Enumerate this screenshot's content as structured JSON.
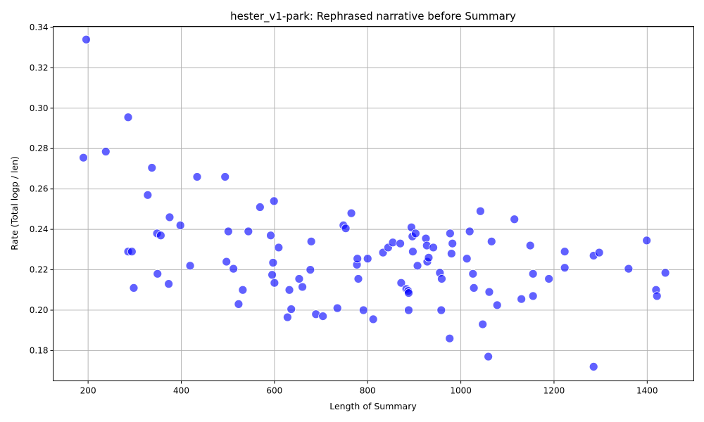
{
  "chart_data": {
    "type": "scatter",
    "title": "hester_v1-park: Rephrased narrative before Summary",
    "xlabel": "Length of Summary",
    "ylabel": "Rate (Total logp / len)",
    "xlim": [
      125,
      1500
    ],
    "ylim": [
      0.165,
      0.3405
    ],
    "xticks": [
      200,
      400,
      600,
      800,
      1000,
      1200,
      1400
    ],
    "yticks": [
      0.18,
      0.2,
      0.22,
      0.24,
      0.26,
      0.28,
      0.3,
      0.32,
      0.34
    ],
    "grid": true,
    "marker_color": "#0000ff",
    "points": [
      {
        "x": 196,
        "y": 0.334
      },
      {
        "x": 190,
        "y": 0.2755
      },
      {
        "x": 238,
        "y": 0.2785
      },
      {
        "x": 286,
        "y": 0.2955
      },
      {
        "x": 286,
        "y": 0.229
      },
      {
        "x": 294,
        "y": 0.229
      },
      {
        "x": 298,
        "y": 0.211
      },
      {
        "x": 328,
        "y": 0.257
      },
      {
        "x": 337,
        "y": 0.2705
      },
      {
        "x": 348,
        "y": 0.238
      },
      {
        "x": 349,
        "y": 0.218
      },
      {
        "x": 356,
        "y": 0.237
      },
      {
        "x": 373,
        "y": 0.213
      },
      {
        "x": 375,
        "y": 0.246
      },
      {
        "x": 398,
        "y": 0.242
      },
      {
        "x": 419,
        "y": 0.222
      },
      {
        "x": 434,
        "y": 0.266
      },
      {
        "x": 494,
        "y": 0.266
      },
      {
        "x": 497,
        "y": 0.224
      },
      {
        "x": 501,
        "y": 0.239
      },
      {
        "x": 512,
        "y": 0.2205
      },
      {
        "x": 523,
        "y": 0.203
      },
      {
        "x": 532,
        "y": 0.21
      },
      {
        "x": 544,
        "y": 0.239
      },
      {
        "x": 569,
        "y": 0.251
      },
      {
        "x": 592,
        "y": 0.237
      },
      {
        "x": 595,
        "y": 0.2175
      },
      {
        "x": 597,
        "y": 0.2235
      },
      {
        "x": 599,
        "y": 0.254
      },
      {
        "x": 600,
        "y": 0.2135
      },
      {
        "x": 609,
        "y": 0.231
      },
      {
        "x": 628,
        "y": 0.1965
      },
      {
        "x": 632,
        "y": 0.21
      },
      {
        "x": 636,
        "y": 0.2005
      },
      {
        "x": 653,
        "y": 0.2155
      },
      {
        "x": 660,
        "y": 0.2115
      },
      {
        "x": 677,
        "y": 0.22
      },
      {
        "x": 679,
        "y": 0.234
      },
      {
        "x": 689,
        "y": 0.198
      },
      {
        "x": 704,
        "y": 0.197
      },
      {
        "x": 735,
        "y": 0.201
      },
      {
        "x": 748,
        "y": 0.242
      },
      {
        "x": 753,
        "y": 0.2405
      },
      {
        "x": 765,
        "y": 0.248
      },
      {
        "x": 777,
        "y": 0.2225
      },
      {
        "x": 778,
        "y": 0.2255
      },
      {
        "x": 780,
        "y": 0.2155
      },
      {
        "x": 791,
        "y": 0.2
      },
      {
        "x": 800,
        "y": 0.2255
      },
      {
        "x": 812,
        "y": 0.1955
      },
      {
        "x": 833,
        "y": 0.2285
      },
      {
        "x": 844,
        "y": 0.231
      },
      {
        "x": 854,
        "y": 0.2335
      },
      {
        "x": 870,
        "y": 0.233
      },
      {
        "x": 872,
        "y": 0.2135
      },
      {
        "x": 883,
        "y": 0.2105
      },
      {
        "x": 887,
        "y": 0.2095
      },
      {
        "x": 888,
        "y": 0.2085
      },
      {
        "x": 888,
        "y": 0.2
      },
      {
        "x": 894,
        "y": 0.241
      },
      {
        "x": 896,
        "y": 0.2365
      },
      {
        "x": 897,
        "y": 0.229
      },
      {
        "x": 903,
        "y": 0.238
      },
      {
        "x": 907,
        "y": 0.222
      },
      {
        "x": 925,
        "y": 0.2355
      },
      {
        "x": 927,
        "y": 0.232
      },
      {
        "x": 928,
        "y": 0.224
      },
      {
        "x": 931,
        "y": 0.226
      },
      {
        "x": 941,
        "y": 0.231
      },
      {
        "x": 955,
        "y": 0.2185
      },
      {
        "x": 958,
        "y": 0.2
      },
      {
        "x": 959,
        "y": 0.2155
      },
      {
        "x": 976,
        "y": 0.186
      },
      {
        "x": 977,
        "y": 0.238
      },
      {
        "x": 980,
        "y": 0.228
      },
      {
        "x": 982,
        "y": 0.233
      },
      {
        "x": 1013,
        "y": 0.2255
      },
      {
        "x": 1019,
        "y": 0.239
      },
      {
        "x": 1026,
        "y": 0.218
      },
      {
        "x": 1028,
        "y": 0.211
      },
      {
        "x": 1042,
        "y": 0.249
      },
      {
        "x": 1047,
        "y": 0.193
      },
      {
        "x": 1059,
        "y": 0.177
      },
      {
        "x": 1061,
        "y": 0.209
      },
      {
        "x": 1066,
        "y": 0.234
      },
      {
        "x": 1078,
        "y": 0.2025
      },
      {
        "x": 1115,
        "y": 0.245
      },
      {
        "x": 1130,
        "y": 0.2055
      },
      {
        "x": 1149,
        "y": 0.232
      },
      {
        "x": 1155,
        "y": 0.218
      },
      {
        "x": 1155,
        "y": 0.207
      },
      {
        "x": 1189,
        "y": 0.2155
      },
      {
        "x": 1223,
        "y": 0.229
      },
      {
        "x": 1223,
        "y": 0.221
      },
      {
        "x": 1285,
        "y": 0.227
      },
      {
        "x": 1285,
        "y": 0.172
      },
      {
        "x": 1297,
        "y": 0.2285
      },
      {
        "x": 1360,
        "y": 0.2205
      },
      {
        "x": 1399,
        "y": 0.2345
      },
      {
        "x": 1419,
        "y": 0.21
      },
      {
        "x": 1421,
        "y": 0.207
      },
      {
        "x": 1439,
        "y": 0.2185
      }
    ]
  }
}
